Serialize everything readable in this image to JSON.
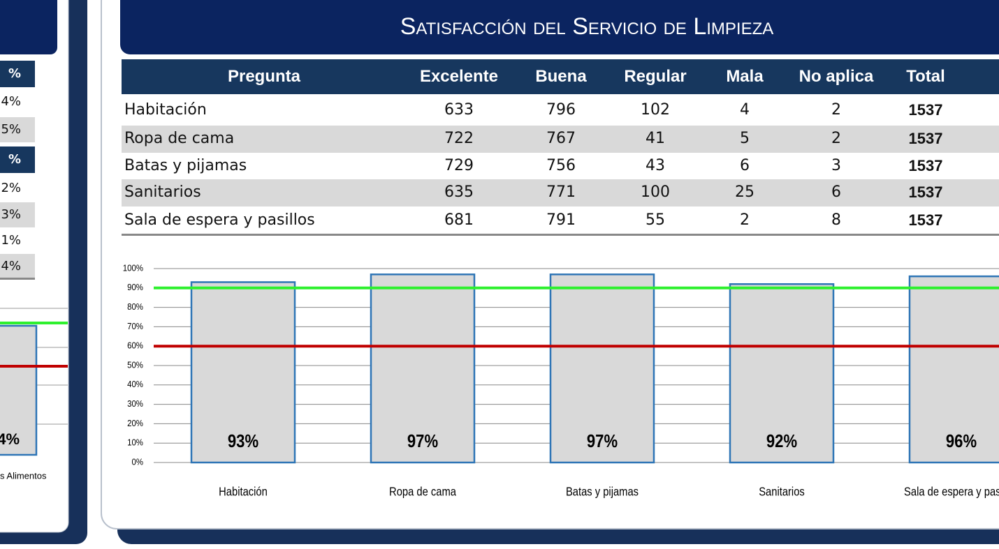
{
  "left_panel": {
    "cells": [
      "%",
      "4%",
      "5%",
      "%",
      "2%",
      "3%",
      "1%",
      "4%"
    ],
    "bar_label": "4%",
    "category": "s Alimentos"
  },
  "header": {
    "title": "Satisfacción del Servicio de Limpieza"
  },
  "table": {
    "columns": [
      "Pregunta",
      "Excelente",
      "Buena",
      "Regular",
      "Mala",
      "No aplica",
      "Total"
    ],
    "rows": [
      [
        "Habitación",
        633,
        796,
        102,
        4,
        2,
        1537
      ],
      [
        "Ropa de cama",
        722,
        767,
        41,
        5,
        2,
        1537
      ],
      [
        "Batas y pijamas",
        729,
        756,
        43,
        6,
        3,
        1537
      ],
      [
        "Sanitarios",
        635,
        771,
        100,
        25,
        6,
        1537
      ],
      [
        "Sala de espera y pasillos",
        681,
        791,
        55,
        2,
        8,
        1537
      ]
    ]
  },
  "chart_data": {
    "type": "bar",
    "categories": [
      "Habitación",
      "Ropa de cama",
      "Batas y pijamas",
      "Sanitarios",
      "Sala de espera y pasillos"
    ],
    "values": [
      93,
      97,
      97,
      92,
      96
    ],
    "value_labels": [
      "93%",
      "97%",
      "97%",
      "92%",
      "96%"
    ],
    "color": "#d9d9d9",
    "edge_color": "#2e75b6",
    "ylim": [
      0,
      100
    ],
    "yticks": [
      {
        "value": 0,
        "label": "0%"
      },
      {
        "value": 10,
        "label": "10%"
      },
      {
        "value": 20,
        "label": "20%"
      },
      {
        "value": 30,
        "label": "30%"
      },
      {
        "value": 40,
        "label": "40%"
      },
      {
        "value": 50,
        "label": "50%"
      },
      {
        "value": 60,
        "label": "60%"
      },
      {
        "value": 70,
        "label": "70%"
      },
      {
        "value": 80,
        "label": "80%"
      },
      {
        "value": 90,
        "label": "90%"
      },
      {
        "value": 100,
        "label": "100%"
      }
    ],
    "grid": true,
    "reference_lines": [
      {
        "value": 90,
        "color": "#2ef02e"
      },
      {
        "value": 60,
        "color": "#c00000"
      }
    ]
  }
}
